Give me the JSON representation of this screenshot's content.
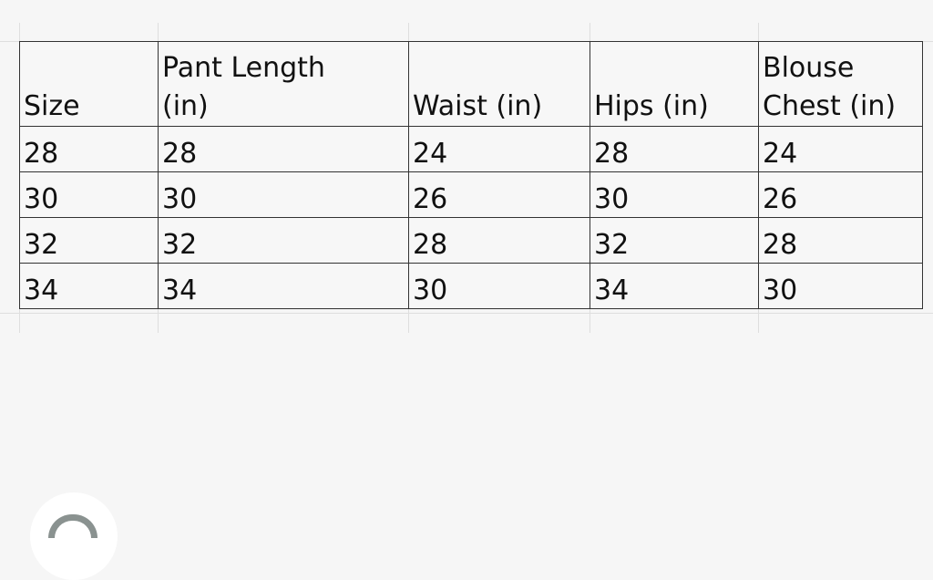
{
  "table": {
    "headers": [
      [
        "Size"
      ],
      [
        "Pant Length",
        "(in)"
      ],
      [
        "Waist (in)"
      ],
      [
        "Hips (in)"
      ],
      [
        "Blouse",
        "Chest (in)"
      ]
    ],
    "rows": [
      [
        "28",
        "28",
        "24",
        "28",
        "24"
      ],
      [
        "30",
        "30",
        "26",
        "30",
        "26"
      ],
      [
        "32",
        "32",
        "28",
        "32",
        "28"
      ],
      [
        "34",
        "34",
        "30",
        "34",
        "30"
      ]
    ]
  },
  "overlay_button": {
    "icon": "partial-ring-icon"
  }
}
